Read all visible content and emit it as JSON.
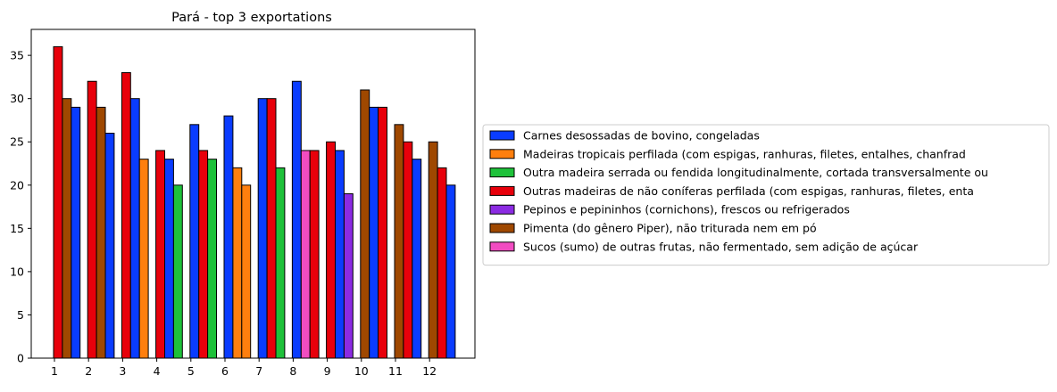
{
  "chart_data": {
    "type": "bar",
    "title": "Pará - top 3 exportations",
    "xlabel": "",
    "ylabel": "",
    "ylim": [
      0,
      38
    ],
    "yticks": [
      0,
      5,
      10,
      15,
      20,
      25,
      30,
      35
    ],
    "categories": [
      "1",
      "2",
      "3",
      "4",
      "5",
      "6",
      "7",
      "8",
      "9",
      "10",
      "11",
      "12"
    ],
    "legend_position": "right",
    "series": [
      {
        "name": "Carnes desossadas de bovino, congeladas",
        "color": "#0a3cff"
      },
      {
        "name": "Madeiras tropicais perfilada (com espigas, ranhuras, filetes, entalhes, chanfrad",
        "color": "#ff7f0e"
      },
      {
        "name": "Outra madeira serrada ou fendida longitudinalmente, cortada transversalmente ou",
        "color": "#1ec13a"
      },
      {
        "name": "Outras madeiras de não coníferas perfilada (com espigas, ranhuras, filetes, enta",
        "color": "#e8000b"
      },
      {
        "name": "Pepinos e pepininhos (cornichons), frescos ou refrigerados",
        "color": "#8b2be2"
      },
      {
        "name": "Pimenta (do gênero Piper), não triturada nem em pó",
        "color": "#9f4800"
      },
      {
        "name": "Sucos (sumo) de outras frutas, não fermentado, sem adição de açúcar",
        "color": "#f14cc1"
      }
    ],
    "groups": [
      [
        {
          "series": 3,
          "value": 36
        },
        {
          "series": 5,
          "value": 30
        },
        {
          "series": 0,
          "value": 29
        }
      ],
      [
        {
          "series": 3,
          "value": 32
        },
        {
          "series": 5,
          "value": 29
        },
        {
          "series": 0,
          "value": 26
        }
      ],
      [
        {
          "series": 3,
          "value": 33
        },
        {
          "series": 0,
          "value": 30
        },
        {
          "series": 1,
          "value": 23
        }
      ],
      [
        {
          "series": 3,
          "value": 24
        },
        {
          "series": 0,
          "value": 23
        },
        {
          "series": 2,
          "value": 20
        }
      ],
      [
        {
          "series": 0,
          "value": 27
        },
        {
          "series": 3,
          "value": 24
        },
        {
          "series": 2,
          "value": 23
        }
      ],
      [
        {
          "series": 0,
          "value": 28
        },
        {
          "series": 1,
          "value": 22
        },
        {
          "series": 1,
          "value": 20
        }
      ],
      [
        {
          "series": 0,
          "value": 30
        },
        {
          "series": 3,
          "value": 30
        },
        {
          "series": 2,
          "value": 22
        }
      ],
      [
        {
          "series": 0,
          "value": 32
        },
        {
          "series": 6,
          "value": 24
        },
        {
          "series": 3,
          "value": 24
        }
      ],
      [
        {
          "series": 3,
          "value": 25
        },
        {
          "series": 0,
          "value": 24
        },
        {
          "series": 4,
          "value": 19
        }
      ],
      [
        {
          "series": 5,
          "value": 31
        },
        {
          "series": 0,
          "value": 29
        },
        {
          "series": 3,
          "value": 29
        }
      ],
      [
        {
          "series": 5,
          "value": 27
        },
        {
          "series": 3,
          "value": 25
        },
        {
          "series": 0,
          "value": 23
        }
      ],
      [
        {
          "series": 5,
          "value": 25
        },
        {
          "series": 3,
          "value": 22
        },
        {
          "series": 0,
          "value": 20
        }
      ]
    ]
  }
}
